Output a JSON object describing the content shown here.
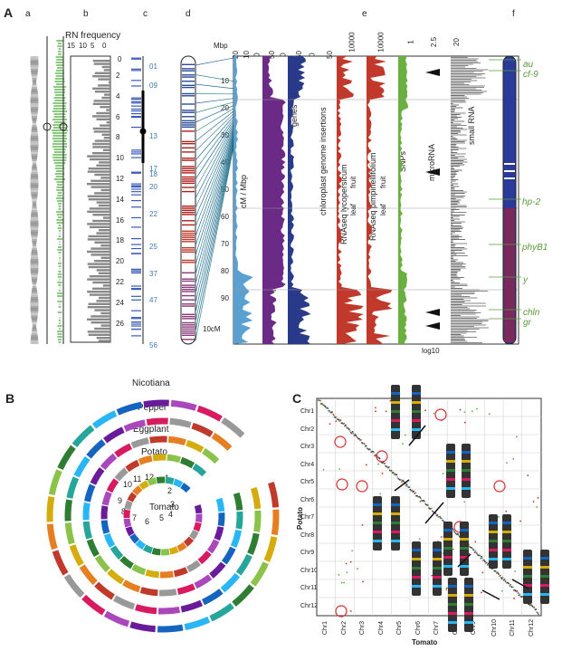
{
  "panel_a": {
    "label": "A",
    "track_letters": [
      "a",
      "b",
      "c",
      "d",
      "e",
      "f"
    ],
    "rn_title": "RN frequency",
    "rn_ticks": [
      "15",
      "10",
      "5",
      "0"
    ],
    "cm_ticks": [
      "2",
      "4",
      "6",
      "8",
      "10",
      "12",
      "14",
      "16",
      "18",
      "20",
      "22",
      "24",
      "26"
    ],
    "cm_zero": "0",
    "c_labels": [
      "01",
      "09",
      "13",
      "18",
      "17",
      "20",
      "22",
      "25",
      "37",
      "47",
      "56"
    ],
    "mbp_label": "Mbp",
    "mbp_top_ticks": [
      "20",
      "10",
      "0",
      "50",
      "0",
      "50",
      "0",
      "50"
    ],
    "e_top_ticks": [
      "10000",
      "10000",
      "1",
      "2.5",
      "20"
    ],
    "mbp_ticks": [
      "10",
      "20",
      "30",
      "40",
      "50",
      "60",
      "70",
      "80",
      "90"
    ],
    "scale_bar": "10cM",
    "tracks": [
      "cM / Mbp",
      "repeats",
      "genes",
      "chloroplast genome insertions",
      "RNAseq lycopersicum",
      "RNAseq pimpinellifolium",
      "SNPs",
      "microRNA",
      "small RNA"
    ],
    "leaf_fruit": [
      "leaf",
      "fruit"
    ],
    "log_label": "log10",
    "genes": [
      "au",
      "cf-9",
      "hp-2",
      "phyB1",
      "y",
      "chln",
      "gr"
    ]
  },
  "panel_b": {
    "label": "B",
    "rings": [
      "Nicotiana",
      "Pepper",
      "Eggplant",
      "Potato",
      "Tomato"
    ],
    "chr_numbers": [
      "1",
      "2",
      "3",
      "4",
      "5",
      "6",
      "7",
      "8",
      "9",
      "10",
      "11",
      "12"
    ]
  },
  "panel_c": {
    "label": "C",
    "y_title": "Potato",
    "x_title": "Tomato",
    "rows": [
      "Chr1",
      "Chr2",
      "Chr3",
      "Chr4",
      "Chr5",
      "Chr6",
      "Chr7",
      "Chr8",
      "Chr9",
      "Chr10",
      "Chr11",
      "Chr12"
    ],
    "cols": [
      "Chr1",
      "Chr2",
      "Chr3",
      "Chr4",
      "Chr5",
      "Chr6",
      "Chr7",
      "Chr8",
      "Chr9",
      "Chr10",
      "Chr11",
      "Chr12"
    ],
    "pt_labels": [
      "P",
      "T"
    ]
  },
  "colors": {
    "green": "#5a9a3a",
    "purple": "#6b2a86",
    "blue": "#2a4a9a",
    "red": "#b03020",
    "accent": "#3a78b8"
  }
}
